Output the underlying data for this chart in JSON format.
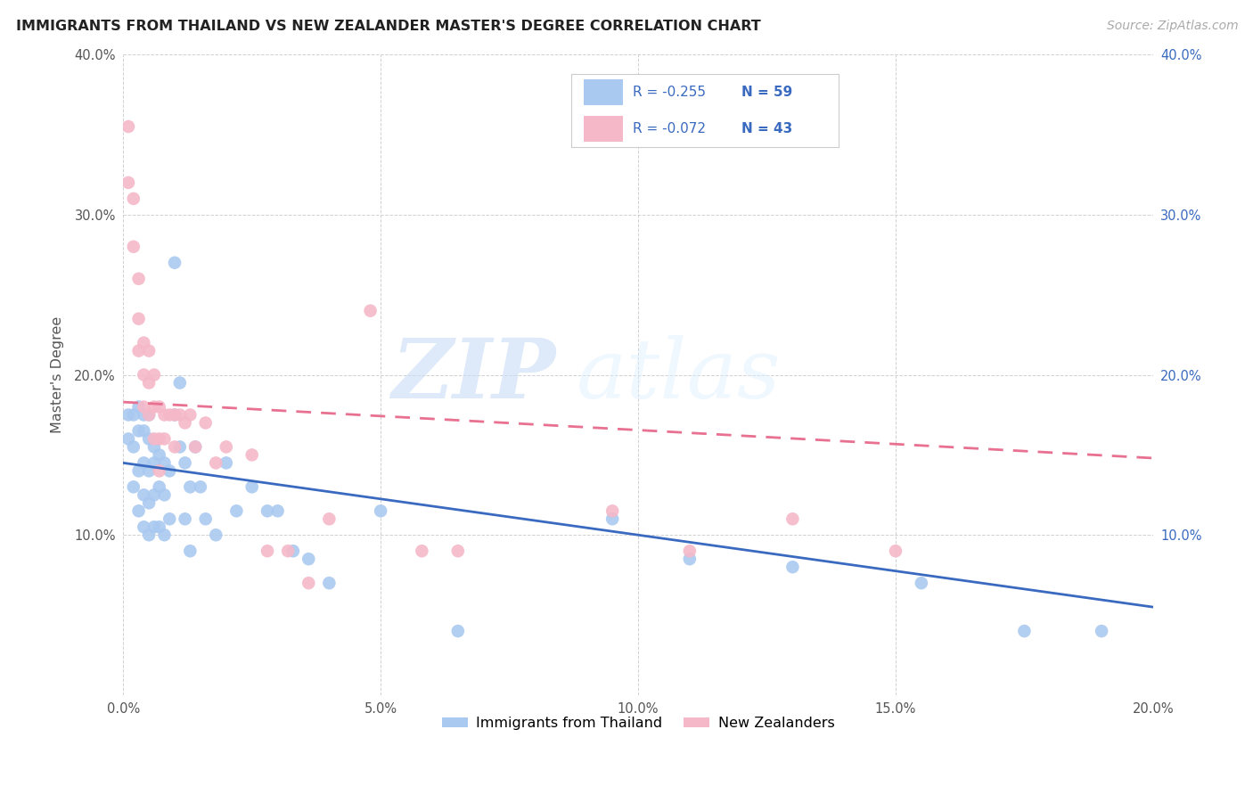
{
  "title": "IMMIGRANTS FROM THAILAND VS NEW ZEALANDER MASTER'S DEGREE CORRELATION CHART",
  "source": "Source: ZipAtlas.com",
  "ylabel": "Master's Degree",
  "xlim": [
    0.0,
    0.2
  ],
  "ylim": [
    0.0,
    0.4
  ],
  "xticks": [
    0.0,
    0.05,
    0.1,
    0.15,
    0.2
  ],
  "yticks": [
    0.0,
    0.1,
    0.2,
    0.3,
    0.4
  ],
  "legend_r1": "-0.255",
  "legend_n1": "59",
  "legend_r2": "-0.072",
  "legend_n2": "43",
  "color_blue": "#aac9f0",
  "color_pink": "#f5b8c8",
  "color_blue_line": "#3a6abf",
  "color_pink_line": "#e87090",
  "color_text_blue": "#3a6abf",
  "watermark_zip": "ZIP",
  "watermark_atlas": "atlas",
  "blue_scatter_x": [
    0.001,
    0.001,
    0.002,
    0.002,
    0.002,
    0.003,
    0.003,
    0.003,
    0.003,
    0.004,
    0.004,
    0.004,
    0.004,
    0.004,
    0.005,
    0.005,
    0.005,
    0.005,
    0.005,
    0.006,
    0.006,
    0.006,
    0.006,
    0.007,
    0.007,
    0.007,
    0.008,
    0.008,
    0.008,
    0.009,
    0.009,
    0.01,
    0.01,
    0.011,
    0.011,
    0.012,
    0.012,
    0.013,
    0.013,
    0.014,
    0.015,
    0.016,
    0.018,
    0.02,
    0.022,
    0.025,
    0.028,
    0.03,
    0.033,
    0.036,
    0.04,
    0.05,
    0.065,
    0.095,
    0.11,
    0.13,
    0.155,
    0.175,
    0.19
  ],
  "blue_scatter_y": [
    0.175,
    0.16,
    0.175,
    0.155,
    0.13,
    0.18,
    0.165,
    0.14,
    0.115,
    0.175,
    0.165,
    0.145,
    0.125,
    0.105,
    0.175,
    0.16,
    0.14,
    0.12,
    0.1,
    0.155,
    0.145,
    0.125,
    0.105,
    0.15,
    0.13,
    0.105,
    0.145,
    0.125,
    0.1,
    0.14,
    0.11,
    0.27,
    0.175,
    0.195,
    0.155,
    0.145,
    0.11,
    0.13,
    0.09,
    0.155,
    0.13,
    0.11,
    0.1,
    0.145,
    0.115,
    0.13,
    0.115,
    0.115,
    0.09,
    0.085,
    0.07,
    0.115,
    0.04,
    0.11,
    0.085,
    0.08,
    0.07,
    0.04,
    0.04
  ],
  "pink_scatter_x": [
    0.001,
    0.001,
    0.002,
    0.002,
    0.003,
    0.003,
    0.003,
    0.004,
    0.004,
    0.004,
    0.005,
    0.005,
    0.005,
    0.006,
    0.006,
    0.006,
    0.007,
    0.007,
    0.007,
    0.008,
    0.008,
    0.009,
    0.01,
    0.01,
    0.011,
    0.012,
    0.013,
    0.014,
    0.016,
    0.018,
    0.02,
    0.025,
    0.028,
    0.032,
    0.036,
    0.04,
    0.048,
    0.058,
    0.065,
    0.095,
    0.11,
    0.13,
    0.15
  ],
  "pink_scatter_y": [
    0.355,
    0.32,
    0.31,
    0.28,
    0.26,
    0.235,
    0.215,
    0.22,
    0.2,
    0.18,
    0.215,
    0.195,
    0.175,
    0.2,
    0.18,
    0.16,
    0.18,
    0.16,
    0.14,
    0.175,
    0.16,
    0.175,
    0.175,
    0.155,
    0.175,
    0.17,
    0.175,
    0.155,
    0.17,
    0.145,
    0.155,
    0.15,
    0.09,
    0.09,
    0.07,
    0.11,
    0.24,
    0.09,
    0.09,
    0.115,
    0.09,
    0.11,
    0.09
  ],
  "blue_line_x": [
    0.0,
    0.2
  ],
  "blue_line_y": [
    0.145,
    0.055
  ],
  "pink_line_x": [
    0.0,
    0.2
  ],
  "pink_line_y": [
    0.183,
    0.148
  ]
}
